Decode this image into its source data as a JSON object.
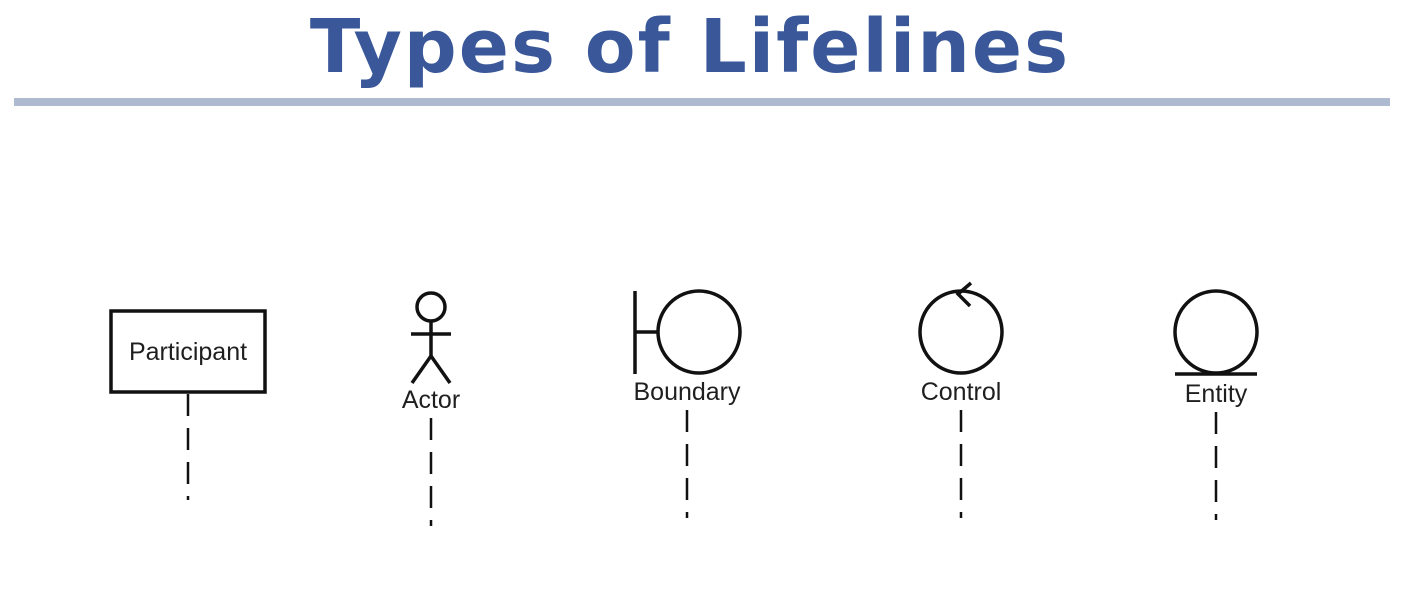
{
  "title": "Types of Lifelines",
  "colors": {
    "title": "#3a5899",
    "rule": "#aebad0",
    "stroke": "#111111"
  },
  "lifelines": [
    {
      "label": "Participant",
      "icon": "participant-box-icon"
    },
    {
      "label": "Actor",
      "icon": "stick-figure-icon"
    },
    {
      "label": "Boundary",
      "icon": "boundary-icon"
    },
    {
      "label": "Control",
      "icon": "control-icon"
    },
    {
      "label": "Entity",
      "icon": "entity-icon"
    }
  ]
}
